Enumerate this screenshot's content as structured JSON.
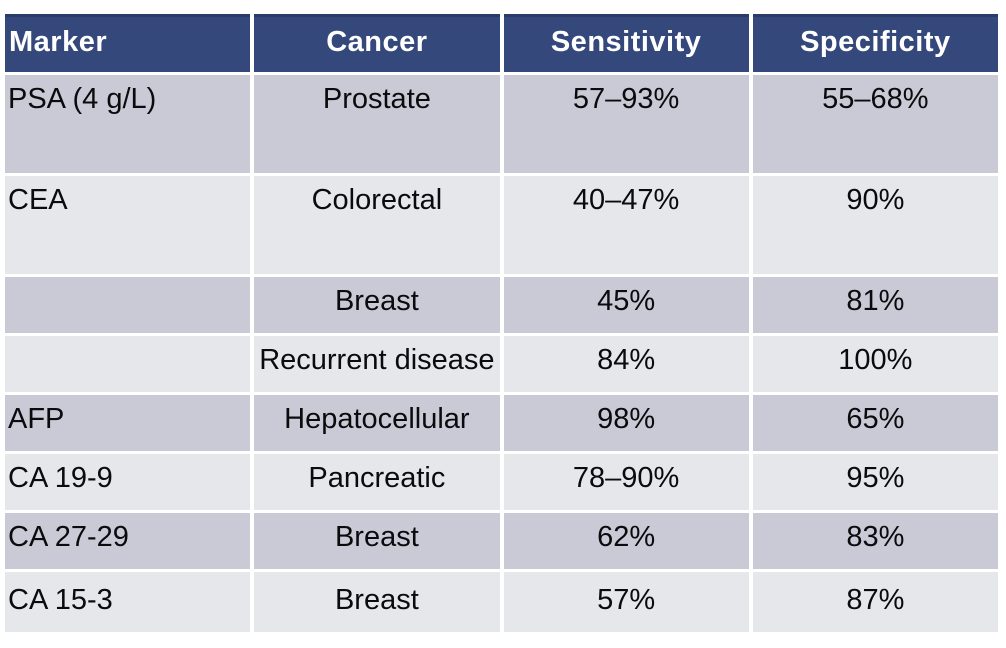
{
  "chart_data": {
    "type": "table",
    "columns": [
      "Marker",
      "Cancer",
      "Sensitivity",
      "Specificity"
    ],
    "rows": [
      [
        "PSA (4 g/L)",
        "Prostate",
        "57–93%",
        "55–68%"
      ],
      [
        "CEA",
        "Colorectal",
        "40–47%",
        "90%"
      ],
      [
        "",
        "Breast",
        "45%",
        "81%"
      ],
      [
        "",
        "Recurrent disease",
        "84%",
        "100%"
      ],
      [
        "AFP",
        "Hepatocellular",
        "98%",
        "65%"
      ],
      [
        "CA 19-9",
        "Pancreatic",
        "78–90%",
        "95%"
      ],
      [
        "CA 27-29",
        "Breast",
        "62%",
        "83%"
      ],
      [
        "CA 15-3",
        "Breast",
        "57%",
        "87%"
      ]
    ]
  },
  "colors": {
    "header_bg": "#35487C",
    "header_top_border": "#2B3A66",
    "header_text": "#FFFFFF",
    "band_dark": "#C9CAD6",
    "band_light": "#E6E7EB",
    "body_text": "#0B0B0D"
  }
}
